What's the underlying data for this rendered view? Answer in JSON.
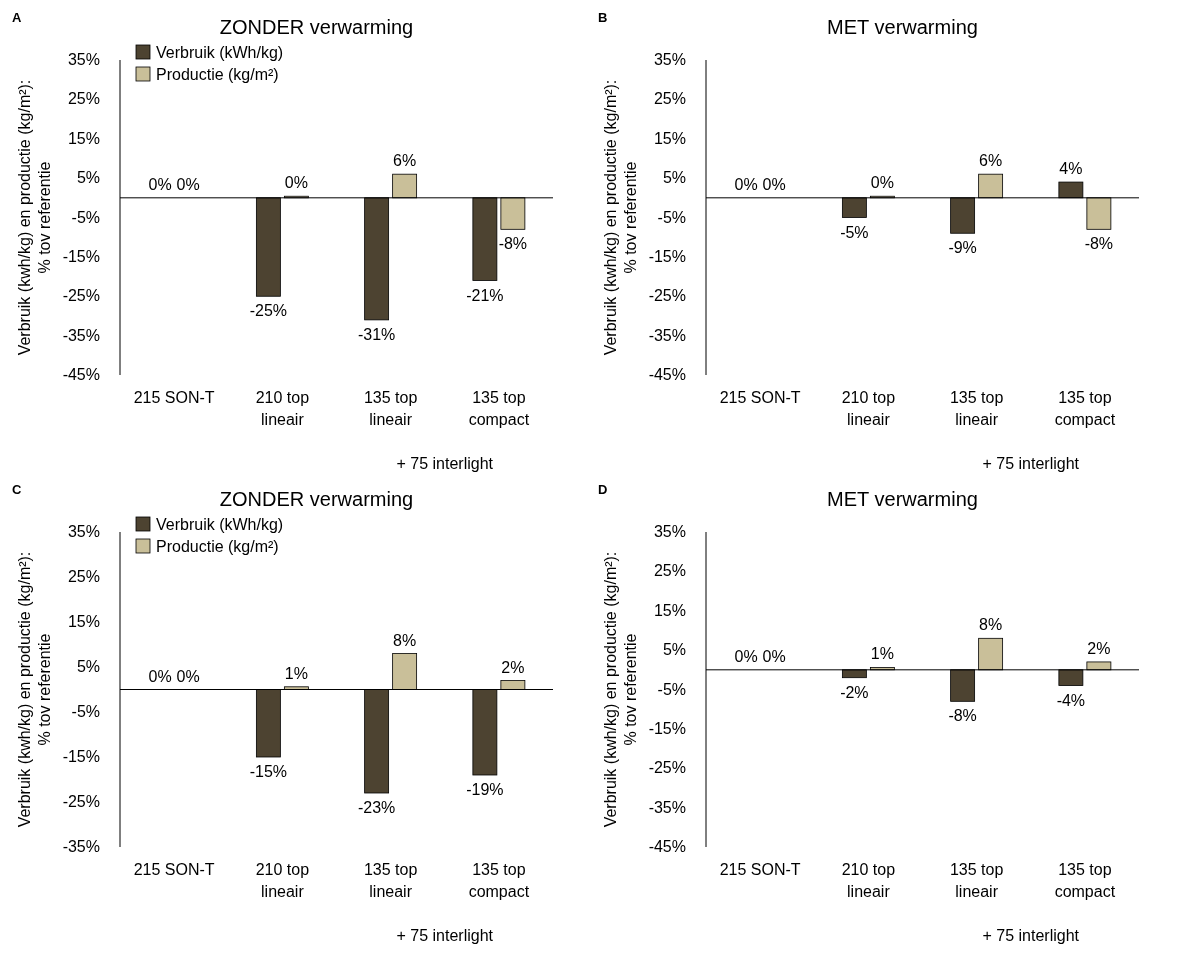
{
  "chart_data": [
    {
      "type": "bar",
      "title": "ZONDER verwarming",
      "ylabel": "Verbruik (kwh/kg) en productie (kg/m²):\n% tov referentie",
      "annotations": [
        "A",
        "+ 75 interlight"
      ],
      "categories": [
        "215 SON-T",
        "210 top\nlineair",
        "135 top\nlineair",
        "135 top\ncompact"
      ],
      "series": [
        {
          "name": "Verbruik (kWh/kg)",
          "color": "#4d4331",
          "values": [
            0,
            -25,
            -31,
            -21
          ],
          "value_labels": [
            "0%",
            "-25%",
            "-31%",
            "-21%"
          ]
        },
        {
          "name": "Productie (kg/m²)",
          "color": "#c9bf99",
          "values": [
            0,
            0.4,
            6,
            -8
          ],
          "value_labels": [
            "0%",
            "0%",
            "6%",
            "-8%"
          ]
        }
      ],
      "ylim": [
        -45,
        35
      ],
      "yticks": [
        {
          "value": 35,
          "label": "35%"
        },
        {
          "value": 25,
          "label": "25%"
        },
        {
          "value": 15,
          "label": "15%"
        },
        {
          "value": 5,
          "label": "5%"
        },
        {
          "value": -5,
          "label": "-5%"
        },
        {
          "value": -15,
          "label": "-15%"
        },
        {
          "value": -25,
          "label": "-25%"
        },
        {
          "value": -35,
          "label": "-35%"
        },
        {
          "value": -45,
          "label": "-45%"
        }
      ],
      "legend": "top left",
      "grid": false
    },
    {
      "type": "bar",
      "title": "MET verwarming",
      "ylabel": "Verbruik (kwh/kg) en productie (kg/m²):\n% tov referentie",
      "annotations": [
        "B",
        "+ 75 interlight"
      ],
      "categories": [
        "215 SON-T",
        "210 top\nlineair",
        "135 top\nlineair",
        "135 top\ncompact"
      ],
      "series": [
        {
          "color": "#4d4331",
          "values": [
            0,
            -5,
            -9,
            4
          ],
          "value_labels": [
            "0%",
            "-5%",
            "-9%",
            "4%"
          ]
        },
        {
          "color": "#c9bf99",
          "values": [
            0,
            0.4,
            6,
            -8
          ],
          "value_labels": [
            "0%",
            "0%",
            "6%",
            "-8%"
          ]
        }
      ],
      "ylim": [
        -45,
        35
      ],
      "yticks": [
        {
          "value": 35,
          "label": "35%"
        },
        {
          "value": 25,
          "label": "25%"
        },
        {
          "value": 15,
          "label": "15%"
        },
        {
          "value": 5,
          "label": "5%"
        },
        {
          "value": -5,
          "label": "-5%"
        },
        {
          "value": -15,
          "label": "-15%"
        },
        {
          "value": -25,
          "label": "-25%"
        },
        {
          "value": -35,
          "label": "-35%"
        },
        {
          "value": -45,
          "label": "-45%"
        }
      ],
      "legend": false,
      "grid": false
    },
    {
      "type": "bar",
      "title": "ZONDER verwarming",
      "ylabel": "Verbruik (kwh/kg) en productie (kg/m²):\n% tov referentie",
      "annotations": [
        "C",
        "+ 75 interlight"
      ],
      "categories": [
        "215 SON-T",
        "210 top\nlineair",
        "135 top\nlineair",
        "135 top\ncompact"
      ],
      "series": [
        {
          "name": "Verbruik (kWh/kg)",
          "color": "#4d4331",
          "values": [
            0,
            -15,
            -23,
            -19
          ],
          "value_labels": [
            "0%",
            "-15%",
            "-23%",
            "-19%"
          ]
        },
        {
          "name": "Productie (kg/m²)",
          "color": "#c9bf99",
          "values": [
            0,
            0.6,
            8,
            2
          ],
          "value_labels": [
            "0%",
            "1%",
            "8%",
            "2%"
          ]
        }
      ],
      "ylim": [
        -35,
        35
      ],
      "yticks": [
        {
          "value": 35,
          "label": "35%"
        },
        {
          "value": 25,
          "label": "25%"
        },
        {
          "value": 15,
          "label": "15%"
        },
        {
          "value": 5,
          "label": "5%"
        },
        {
          "value": -5,
          "label": "-5%"
        },
        {
          "value": -15,
          "label": "-15%"
        },
        {
          "value": -25,
          "label": "-25%"
        },
        {
          "value": -35,
          "label": "-35%"
        }
      ],
      "legend": "top left",
      "grid": false
    },
    {
      "type": "bar",
      "title": "MET verwarming",
      "ylabel": "Verbruik (kwh/kg) en productie (kg/m²):\n% tov referentie",
      "annotations": [
        "D",
        "+ 75 interlight"
      ],
      "categories": [
        "215 SON-T",
        "210 top\nlineair",
        "135 top\nlineair",
        "135 top\ncompact"
      ],
      "series": [
        {
          "color": "#4d4331",
          "values": [
            0,
            -2,
            -8,
            -4
          ],
          "value_labels": [
            "0%",
            "-2%",
            "-8%",
            "-4%"
          ]
        },
        {
          "color": "#c9bf99",
          "values": [
            0,
            0.6,
            8,
            2
          ],
          "value_labels": [
            "0%",
            "1%",
            "8%",
            "2%"
          ]
        }
      ],
      "ylim": [
        -45,
        35
      ],
      "yticks": [
        {
          "value": 35,
          "label": "35%"
        },
        {
          "value": 25,
          "label": "25%"
        },
        {
          "value": 15,
          "label": "15%"
        },
        {
          "value": 5,
          "label": "5%"
        },
        {
          "value": -5,
          "label": "-5%"
        },
        {
          "value": -15,
          "label": "-15%"
        },
        {
          "value": -25,
          "label": "-25%"
        },
        {
          "value": -35,
          "label": "-35%"
        },
        {
          "value": -45,
          "label": "-45%"
        }
      ],
      "legend": false,
      "grid": false
    }
  ]
}
